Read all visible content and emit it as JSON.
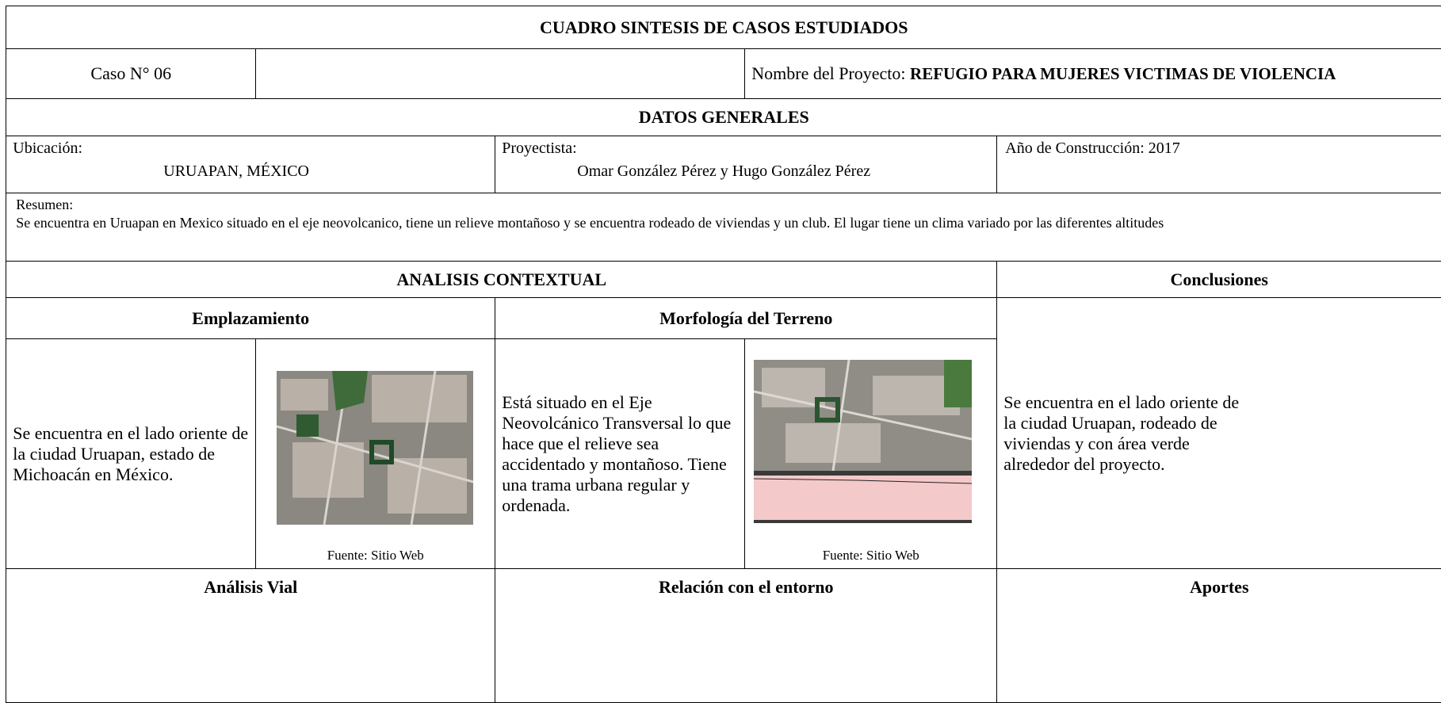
{
  "header": {
    "title": "CUADRO SINTESIS DE CASOS ESTUDIADOS"
  },
  "case": {
    "number": "Caso N° 06",
    "project_label": "Nombre del Proyecto:",
    "project_name": "REFUGIO PARA MUJERES VICTIMAS DE VIOLENCIA"
  },
  "general": {
    "title": "DATOS GENERALES",
    "location_label": "Ubicación:",
    "location": "URUAPAN, MÉXICO",
    "designer_label": "Proyectista:",
    "designer": "Omar González Pérez y Hugo González Pérez",
    "year": "Año de Construcción: 2017",
    "summary_label": "Resumen:",
    "summary": "Se encuentra en Uruapan en Mexico situado en el eje neovolcanico, tiene un relieve montañoso y se encuentra rodeado de viviendas y un club. El lugar tiene un clima variado por las diferentes altitudes"
  },
  "analysis": {
    "title": "ANALISIS CONTEXTUAL",
    "conclusions_title": "Conclusiones",
    "site": {
      "title": "Emplazamiento",
      "text": "Se encuentra en el lado oriente de la ciudad Uruapan, estado de Michoacán en México.",
      "source": "Fuente: Sitio Web"
    },
    "terrain": {
      "title": "Morfología del Terreno",
      "text": "Está situado en el Eje Neovolcánico Transversal lo que hace que el relieve sea accidentado y montañoso. Tiene una trama urbana regular y ordenada.",
      "source": "Fuente: Sitio Web"
    },
    "conclusions": "Se encuentra en el lado oriente de la ciudad Uruapan, rodeado de viviendas y con área verde alrededor del proyecto.",
    "roads_title": "Análisis Vial",
    "surroundings_title": "Relación con el entorno",
    "contributions_title": "Aportes"
  }
}
